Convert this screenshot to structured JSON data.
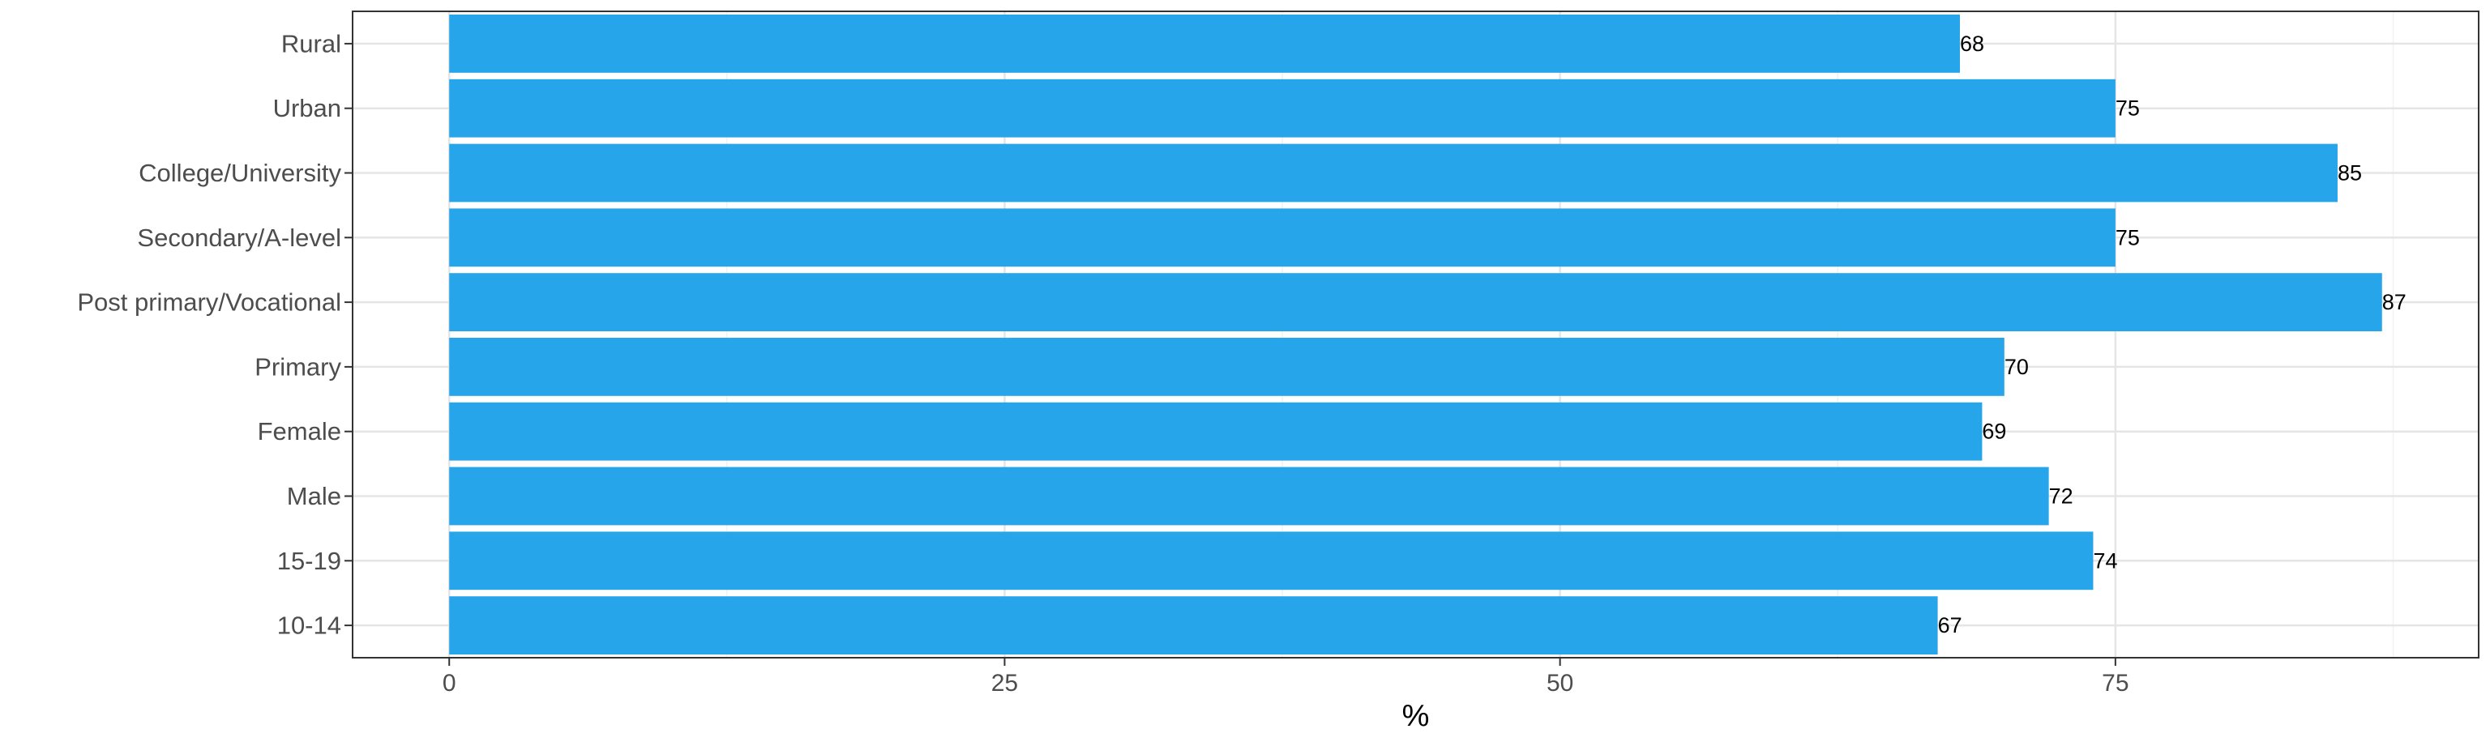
{
  "chart_data": {
    "type": "bar",
    "orientation": "horizontal",
    "categories": [
      "Rural",
      "Urban",
      "College/University",
      "Secondary/A-level",
      "Post primary/Vocational",
      "Primary",
      "Female",
      "Male",
      "15-19",
      "10-14"
    ],
    "values": [
      68,
      75,
      85,
      75,
      87,
      70,
      69,
      72,
      74,
      67
    ],
    "data_labels": [
      "68",
      "75",
      "85",
      "75",
      "87",
      "70",
      "69",
      "72",
      "74",
      "67"
    ],
    "xlabel": "%",
    "ylabel": "",
    "xlim": [
      -4.35,
      91.35
    ],
    "xticks": [
      0,
      25,
      50,
      75
    ],
    "xtick_labels": [
      "0",
      "25",
      "50",
      "75"
    ],
    "grid": true,
    "bar_color": "#27a5ea"
  }
}
